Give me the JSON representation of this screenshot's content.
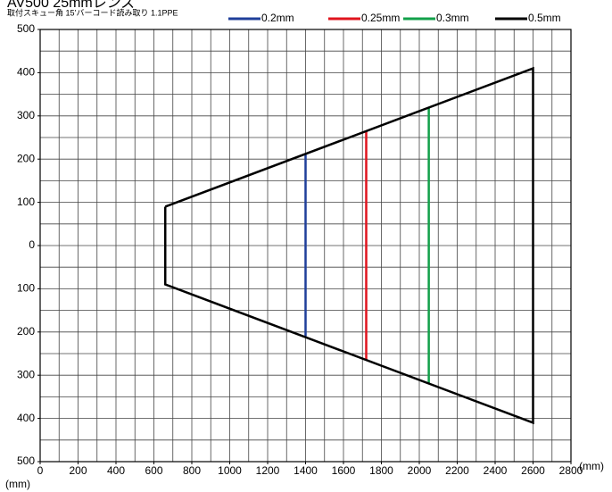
{
  "chart_data": {
    "type": "line",
    "title": "AV500 25mmレンズ",
    "subtitle": "取付スキュー角 15’バーコード読み取り 1.1PPE",
    "xlabel": "(mm)",
    "ylabel": "(mm)",
    "xlim": [
      0,
      2800
    ],
    "xticks": [
      0,
      200,
      400,
      600,
      800,
      1000,
      1200,
      1400,
      1600,
      1800,
      2000,
      2200,
      2400,
      2600,
      2800
    ],
    "ylim": [
      -500,
      500
    ],
    "yticks": [
      {
        "value": 500,
        "label": "500"
      },
      {
        "value": 400,
        "label": "400"
      },
      {
        "value": 300,
        "label": "300"
      },
      {
        "value": 200,
        "label": "200"
      },
      {
        "value": 100,
        "label": "100"
      },
      0,
      {
        "value": -100,
        "label": "100"
      },
      {
        "value": -200,
        "label": "200"
      },
      {
        "value": -300,
        "label": "300"
      },
      {
        "value": -400,
        "label": "400"
      },
      {
        "value": -500,
        "label": "500"
      }
    ],
    "grid": true,
    "grid_step_x": 100,
    "grid_step_y": 50,
    "series": [
      {
        "name": "0.2mm",
        "color": "#1f3f9a",
        "x": [
          1400,
          1400
        ],
        "values": [
          210,
          -210
        ]
      },
      {
        "name": "0.25mm",
        "color": "#e0141e",
        "x": [
          1720,
          1720
        ],
        "values": [
          265,
          -265
        ]
      },
      {
        "name": "0.3mm",
        "color": "#12a04a",
        "x": [
          2050,
          2050
        ],
        "values": [
          320,
          -320
        ]
      },
      {
        "name": "0.5mm",
        "color": "#000000",
        "x": [
          660,
          2600,
          2600,
          660,
          660
        ],
        "values": [
          90,
          410,
          -410,
          -90,
          90
        ]
      }
    ]
  }
}
